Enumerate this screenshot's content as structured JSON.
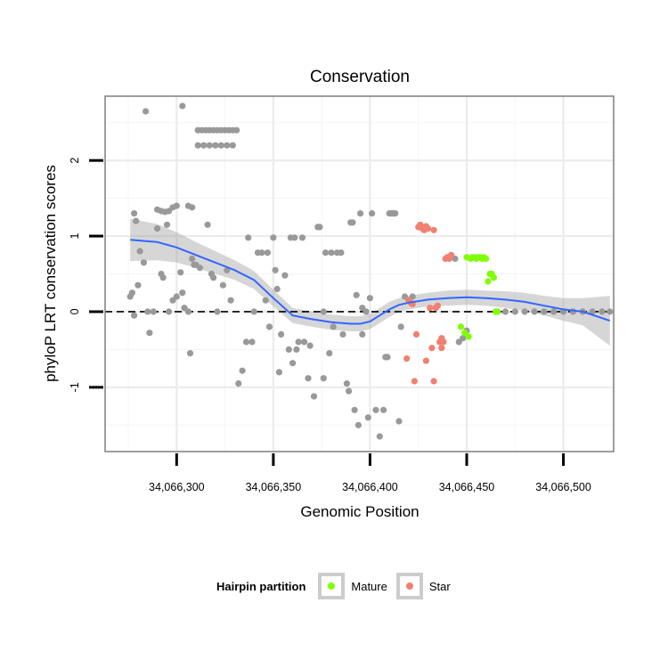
{
  "chart_data": {
    "type": "scatter",
    "title": "Conservation",
    "xlabel": "Genomic Position",
    "ylabel": "phyloP LRT conservation scores",
    "xlim": [
      34066263,
      34066526
    ],
    "ylim": [
      -1.85,
      2.85
    ],
    "x_ticks": [
      34066300,
      34066350,
      34066400,
      34066450,
      34066500
    ],
    "x_tick_labels": [
      "34,066,300",
      "34,066,350",
      "34,066,400",
      "34,066,450",
      "34,066,500"
    ],
    "y_ticks": [
      -1,
      0,
      1,
      2
    ],
    "y_tick_labels": [
      "-1",
      "0",
      "1",
      "2"
    ],
    "reference_line": {
      "y": 0,
      "style": "dashed"
    },
    "grid": true,
    "legend": {
      "title": "Hairpin partition",
      "position": "bottom",
      "entries": [
        {
          "name": "Mature",
          "color": "#7fff00"
        },
        {
          "name": "Star",
          "color": "#f08070"
        }
      ]
    },
    "series": [
      {
        "name": "Other",
        "color": "#999999",
        "points": [
          [
            34066278,
            1.3
          ],
          [
            34066279,
            1.2
          ],
          [
            34066284,
            2.65
          ],
          [
            34066290,
            1.35
          ],
          [
            34066292,
            1.33
          ],
          [
            34066294,
            1.32
          ],
          [
            34066296,
            1.33
          ],
          [
            34066298,
            1.38
          ],
          [
            34066300,
            1.4
          ],
          [
            34066303,
            2.72
          ],
          [
            34066306,
            1.4
          ],
          [
            34066308,
            1.38
          ],
          [
            34066311,
            2.4
          ],
          [
            34066313,
            2.4
          ],
          [
            34066315,
            2.4
          ],
          [
            34066317,
            2.4
          ],
          [
            34066319,
            2.4
          ],
          [
            34066321,
            2.4
          ],
          [
            34066323,
            2.4
          ],
          [
            34066325,
            2.4
          ],
          [
            34066327,
            2.4
          ],
          [
            34066329,
            2.4
          ],
          [
            34066331,
            2.4
          ],
          [
            34066311,
            2.2
          ],
          [
            34066314,
            2.2
          ],
          [
            34066317,
            2.2
          ],
          [
            34066320,
            2.2
          ],
          [
            34066323,
            2.2
          ],
          [
            34066326,
            2.2
          ],
          [
            34066329,
            2.2
          ],
          [
            34066276,
            0.2
          ],
          [
            34066277,
            0.25
          ],
          [
            34066278,
            -0.05
          ],
          [
            34066280,
            0.35
          ],
          [
            34066281,
            0.8
          ],
          [
            34066283,
            0.65
          ],
          [
            34066285,
            0.0
          ],
          [
            34066286,
            -0.28
          ],
          [
            34066288,
            0.0
          ],
          [
            34066290,
            1.1
          ],
          [
            34066292,
            0.5
          ],
          [
            34066293,
            0.45
          ],
          [
            34066295,
            1.15
          ],
          [
            34066296,
            0.0
          ],
          [
            34066298,
            0.15
          ],
          [
            34066300,
            0.2
          ],
          [
            34066302,
            0.52
          ],
          [
            34066303,
            0.25
          ],
          [
            34066304,
            0.05
          ],
          [
            34066306,
            0.0
          ],
          [
            34066307,
            -0.55
          ],
          [
            34066308,
            0.7
          ],
          [
            34066309,
            0.62
          ],
          [
            34066310,
            0.62
          ],
          [
            34066312,
            0.58
          ],
          [
            34066316,
            1.15
          ],
          [
            34066318,
            0.5
          ],
          [
            34066319,
            0.45
          ],
          [
            34066321,
            0.0
          ],
          [
            34066324,
            0.35
          ],
          [
            34066326,
            0.55
          ],
          [
            34066328,
            0.15
          ],
          [
            34066332,
            -0.95
          ],
          [
            34066334,
            -0.78
          ],
          [
            34066336,
            -0.4
          ],
          [
            34066337,
            0.98
          ],
          [
            34066339,
            -0.4
          ],
          [
            34066340,
            0.0
          ],
          [
            34066342,
            0.78
          ],
          [
            34066344,
            0.78
          ],
          [
            34066346,
            0.15
          ],
          [
            34066347,
            0.78
          ],
          [
            34066348,
            -0.2
          ],
          [
            34066350,
            0.98
          ],
          [
            34066351,
            0.55
          ],
          [
            34066352,
            0.3
          ],
          [
            34066353,
            -0.8
          ],
          [
            34066354,
            -0.3
          ],
          [
            34066356,
            0.48
          ],
          [
            34066358,
            -0.5
          ],
          [
            34066359,
            0.98
          ],
          [
            34066360,
            -0.68
          ],
          [
            34066361,
            0.98
          ],
          [
            34066362,
            -0.5
          ],
          [
            34066363,
            -0.4
          ],
          [
            34066365,
            0.98
          ],
          [
            34066366,
            -0.4
          ],
          [
            34066368,
            -0.88
          ],
          [
            34066369,
            -0.45
          ],
          [
            34066371,
            -1.12
          ],
          [
            34066373,
            1.12
          ],
          [
            34066374,
            1.12
          ],
          [
            34066376,
            -0.88
          ],
          [
            34066376,
            0.0
          ],
          [
            34066377,
            0.78
          ],
          [
            34066379,
            -0.55
          ],
          [
            34066380,
            0.78
          ],
          [
            34066381,
            -0.2
          ],
          [
            34066383,
            0.78
          ],
          [
            34066385,
            0.78
          ],
          [
            34066388,
            -0.95
          ],
          [
            34066389,
            -1.05
          ],
          [
            34066390,
            1.18
          ],
          [
            34066391,
            1.18
          ],
          [
            34066392,
            -1.3
          ],
          [
            34066393,
            0.22
          ],
          [
            34066394,
            -1.5
          ],
          [
            34066395,
            1.3
          ],
          [
            34066396,
            -0.3
          ],
          [
            34066398,
            0.0
          ],
          [
            34066399,
            -1.4
          ],
          [
            34066400,
            0.18
          ],
          [
            34066401,
            1.3
          ],
          [
            34066403,
            -1.3
          ],
          [
            34066405,
            -1.65
          ],
          [
            34066407,
            -1.3
          ],
          [
            34066408,
            -0.6
          ],
          [
            34066409,
            -0.6
          ],
          [
            34066410,
            1.3
          ],
          [
            34066411,
            1.3
          ],
          [
            34066412,
            1.3
          ],
          [
            34066413,
            1.3
          ],
          [
            34066415,
            -1.45
          ],
          [
            34066416,
            -0.2
          ],
          [
            34066418,
            0.2
          ],
          [
            34066420,
            0.15
          ],
          [
            34066422,
            0.2
          ],
          [
            34066396,
            0.05
          ],
          [
            34066386,
            -0.3
          ],
          [
            34066444,
            0.7
          ],
          [
            34066446,
            -0.4
          ],
          [
            34066448,
            -0.35
          ],
          [
            34066450,
            -0.25
          ],
          [
            34066470,
            0.0
          ],
          [
            34066475,
            0.0
          ],
          [
            34066480,
            0.0
          ],
          [
            34066485,
            0.0
          ],
          [
            34066490,
            0.0
          ],
          [
            34066495,
            0.0
          ],
          [
            34066500,
            0.0
          ],
          [
            34066505,
            0.0
          ],
          [
            34066510,
            0.0
          ],
          [
            34066515,
            0.0
          ],
          [
            34066520,
            0.0
          ],
          [
            34066524,
            0.0
          ]
        ]
      },
      {
        "name": "Star",
        "color": "#f08070",
        "points": [
          [
            34066420,
            0.15
          ],
          [
            34066421,
            0.12
          ],
          [
            34066422,
            0.1
          ],
          [
            34066419,
            -0.62
          ],
          [
            34066423,
            -0.92
          ],
          [
            34066424,
            -0.3
          ],
          [
            34066425,
            1.12
          ],
          [
            34066426,
            1.15
          ],
          [
            34066427,
            1.1
          ],
          [
            34066428,
            1.08
          ],
          [
            34066429,
            1.13
          ],
          [
            34066430,
            1.1
          ],
          [
            34066429,
            -0.65
          ],
          [
            34066431,
            0.05
          ],
          [
            34066432,
            -0.48
          ],
          [
            34066433,
            -0.92
          ],
          [
            34066435,
            0.08
          ],
          [
            34066436,
            -0.4
          ],
          [
            34066437,
            -0.35
          ],
          [
            34066437,
            -0.48
          ],
          [
            34066438,
            -0.4
          ],
          [
            34066439,
            0.7
          ],
          [
            34066440,
            0.72
          ],
          [
            34066441,
            0.7
          ],
          [
            34066442,
            0.75
          ],
          [
            34066433,
            1.08
          ],
          [
            34066434,
            0.05
          ]
        ]
      },
      {
        "name": "Mature",
        "color": "#7fff00",
        "points": [
          [
            34066447,
            -0.2
          ],
          [
            34066449,
            -0.28
          ],
          [
            34066451,
            -0.33
          ],
          [
            34066450,
            0.72
          ],
          [
            34066452,
            0.7
          ],
          [
            34066453,
            0.72
          ],
          [
            34066454,
            0.72
          ],
          [
            34066455,
            0.7
          ],
          [
            34066456,
            0.72
          ],
          [
            34066457,
            0.72
          ],
          [
            34066458,
            0.7
          ],
          [
            34066459,
            0.72
          ],
          [
            34066460,
            0.7
          ],
          [
            34066461,
            0.4
          ],
          [
            34066462,
            0.5
          ],
          [
            34066463,
            0.5
          ],
          [
            34066464,
            0.45
          ],
          [
            34066465,
            0.0
          ],
          [
            34066466,
            0.0
          ]
        ]
      }
    ],
    "smooth": {
      "method": "loess",
      "color": "#3366ff",
      "points": [
        [
          34066276,
          0.95
        ],
        [
          34066290,
          0.92
        ],
        [
          34066300,
          0.85
        ],
        [
          34066310,
          0.75
        ],
        [
          34066320,
          0.65
        ],
        [
          34066330,
          0.55
        ],
        [
          34066340,
          0.42
        ],
        [
          34066350,
          0.18
        ],
        [
          34066360,
          -0.05
        ],
        [
          34066370,
          -0.1
        ],
        [
          34066380,
          -0.14
        ],
        [
          34066390,
          -0.16
        ],
        [
          34066395,
          -0.16
        ],
        [
          34066400,
          -0.13
        ],
        [
          34066405,
          -0.05
        ],
        [
          34066410,
          0.03
        ],
        [
          34066415,
          0.09
        ],
        [
          34066420,
          0.12
        ],
        [
          34066430,
          0.16
        ],
        [
          34066440,
          0.18
        ],
        [
          34066450,
          0.19
        ],
        [
          34066460,
          0.18
        ],
        [
          34066470,
          0.16
        ],
        [
          34066480,
          0.13
        ],
        [
          34066490,
          0.08
        ],
        [
          34066500,
          0.03
        ],
        [
          34066510,
          0.0
        ],
        [
          34066524,
          -0.12
        ]
      ],
      "band_halfwidth": [
        0.28,
        0.24,
        0.2,
        0.17,
        0.15,
        0.13,
        0.12,
        0.11,
        0.1,
        0.1,
        0.1,
        0.1,
        0.1,
        0.1,
        0.1,
        0.1,
        0.09,
        0.09,
        0.09,
        0.1,
        0.1,
        0.1,
        0.11,
        0.12,
        0.13,
        0.15,
        0.18,
        0.33
      ]
    }
  }
}
